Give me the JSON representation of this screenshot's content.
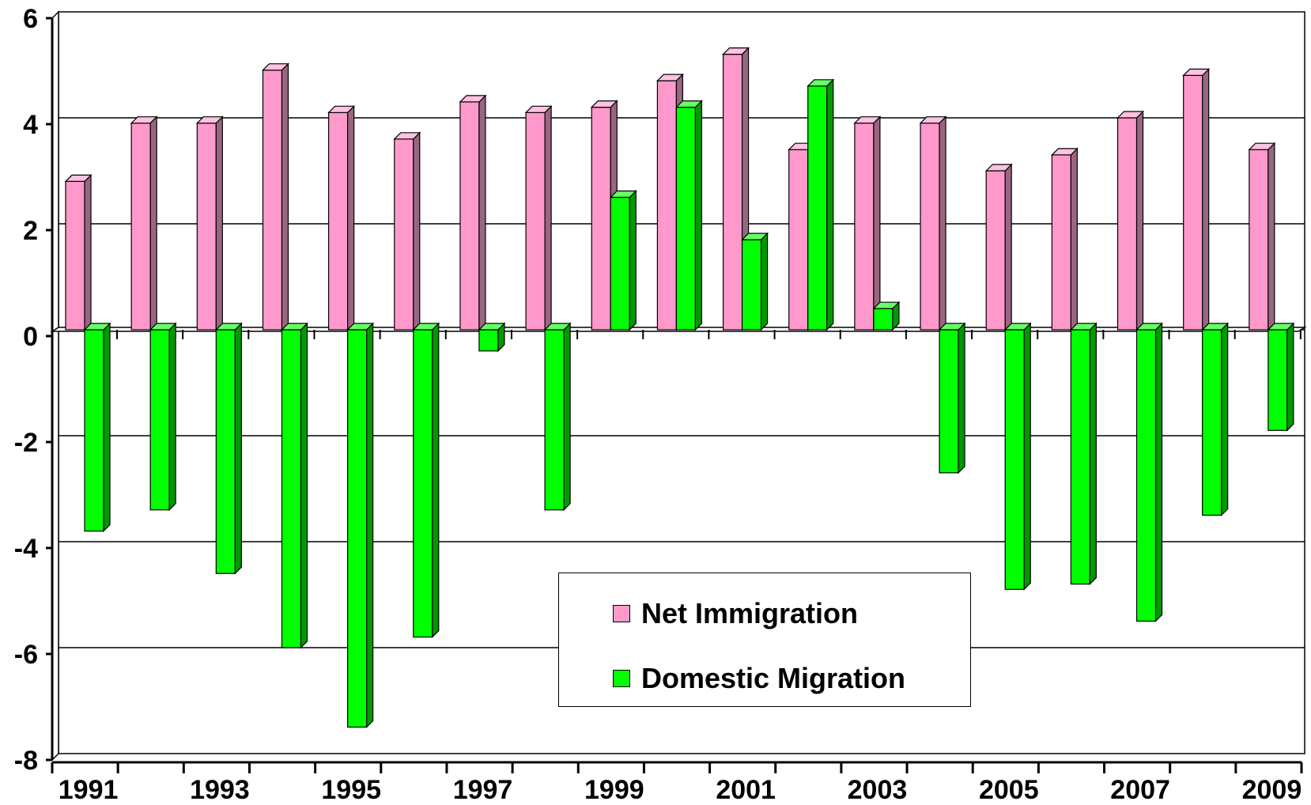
{
  "chart_data": {
    "type": "bar",
    "categories": [
      "1991",
      "1992",
      "1993",
      "1994",
      "1995",
      "1996",
      "1997",
      "1998",
      "1999",
      "2000",
      "2001",
      "2002",
      "2003",
      "2004",
      "2005",
      "2006",
      "2007",
      "2008",
      "2009"
    ],
    "x_tick_labels": [
      "1991",
      "1993",
      "1995",
      "1997",
      "1999",
      "2001",
      "2003",
      "2005",
      "2007",
      "2009"
    ],
    "series": [
      {
        "name": "Net Immigration",
        "color": "#ff99cc",
        "side_color": "#996680",
        "top_color": "#ffc2e0",
        "values": [
          2.8,
          3.9,
          3.9,
          4.9,
          4.1,
          3.6,
          4.3,
          4.1,
          4.2,
          4.7,
          5.2,
          3.4,
          3.9,
          3.9,
          3.0,
          3.3,
          4.0,
          4.8,
          3.4
        ]
      },
      {
        "name": "Domestic Migration",
        "color": "#00ff00",
        "side_color": "#009900",
        "top_color": "#66ff66",
        "values": [
          -3.8,
          -3.4,
          -4.6,
          -6.0,
          -7.5,
          -5.8,
          -0.4,
          -3.4,
          2.5,
          4.2,
          1.7,
          4.6,
          0.4,
          -2.7,
          -4.9,
          -4.8,
          -5.5,
          -3.5,
          -1.9
        ]
      }
    ],
    "y_ticks": [
      "6",
      "4",
      "2",
      "0",
      "-2",
      "-4",
      "-6",
      "-8"
    ],
    "ylim": [
      -8,
      6
    ],
    "grid": true,
    "legend_position": "bottom-center"
  }
}
